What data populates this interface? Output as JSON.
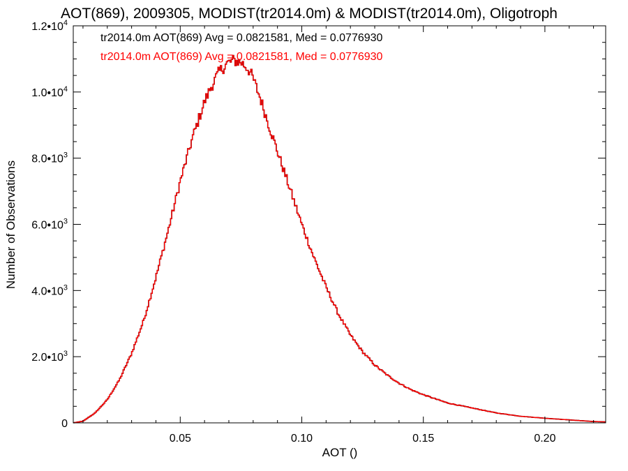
{
  "chart_data": {
    "type": "line",
    "title": "AOT(869), 2009305, MODIST(tr2014.0m) & MODIST(tr2014.0m), Oligotroph",
    "xlabel": "AOT ()",
    "ylabel": "Number of Observations",
    "xlim": [
      0.006,
      0.225
    ],
    "ylim": [
      0,
      12000
    ],
    "x_ticks": [
      {
        "value": 0.05,
        "label": "0.05"
      },
      {
        "value": 0.1,
        "label": "0.10"
      },
      {
        "value": 0.15,
        "label": "0.15"
      },
      {
        "value": 0.2,
        "label": "0.20"
      }
    ],
    "y_ticks": [
      {
        "value": 0,
        "mantissa": "0",
        "exp": ""
      },
      {
        "value": 2000,
        "mantissa": "2.0•10",
        "exp": "3"
      },
      {
        "value": 4000,
        "mantissa": "4.0•10",
        "exp": "3"
      },
      {
        "value": 6000,
        "mantissa": "6.0•10",
        "exp": "3"
      },
      {
        "value": 8000,
        "mantissa": "8.0•10",
        "exp": "3"
      },
      {
        "value": 10000,
        "mantissa": "1.0•10",
        "exp": "4"
      },
      {
        "value": 12000,
        "mantissa": "1.2•10",
        "exp": "4"
      }
    ],
    "legend": {
      "placement": "top-left",
      "entries": [
        {
          "text": "tr2014.0m AOT(869) Avg = 0.0821581, Med = 0.0776930",
          "color": "#000000"
        },
        {
          "text": "tr2014.0m AOT(869) Avg = 0.0821581, Med = 0.0776930",
          "color": "#ff0000"
        }
      ]
    },
    "series": [
      {
        "color": "#000000",
        "x": [
          0.006,
          0.01,
          0.015,
          0.02,
          0.025,
          0.03,
          0.035,
          0.04,
          0.045,
          0.05,
          0.055,
          0.06,
          0.063,
          0.066,
          0.069,
          0.072,
          0.075,
          0.078,
          0.08,
          0.083,
          0.086,
          0.09,
          0.095,
          0.1,
          0.105,
          0.11,
          0.115,
          0.12,
          0.125,
          0.13,
          0.135,
          0.14,
          0.145,
          0.15,
          0.16,
          0.17,
          0.18,
          0.19,
          0.2,
          0.21,
          0.22,
          0.225
        ],
        "y": [
          0,
          50,
          300,
          700,
          1300,
          2100,
          3100,
          4400,
          5800,
          7300,
          8600,
          9700,
          10200,
          10600,
          10850,
          10950,
          10900,
          10700,
          10400,
          9800,
          9100,
          8200,
          7100,
          6000,
          5000,
          4100,
          3300,
          2650,
          2150,
          1750,
          1450,
          1200,
          1000,
          850,
          600,
          450,
          300,
          200,
          140,
          90,
          40,
          30
        ]
      },
      {
        "color": "#ff0000",
        "x": [
          0.006,
          0.01,
          0.015,
          0.02,
          0.025,
          0.03,
          0.035,
          0.04,
          0.045,
          0.05,
          0.055,
          0.06,
          0.063,
          0.066,
          0.069,
          0.072,
          0.075,
          0.078,
          0.08,
          0.083,
          0.086,
          0.09,
          0.095,
          0.1,
          0.105,
          0.11,
          0.115,
          0.12,
          0.125,
          0.13,
          0.135,
          0.14,
          0.145,
          0.15,
          0.16,
          0.17,
          0.18,
          0.19,
          0.2,
          0.21,
          0.22,
          0.225
        ],
        "y": [
          0,
          50,
          300,
          700,
          1300,
          2100,
          3100,
          4400,
          5800,
          7300,
          8600,
          9700,
          10200,
          10600,
          10850,
          10950,
          10900,
          10700,
          10400,
          9800,
          9100,
          8200,
          7100,
          6000,
          5000,
          4100,
          3300,
          2650,
          2150,
          1750,
          1450,
          1200,
          1000,
          850,
          600,
          450,
          300,
          200,
          140,
          90,
          40,
          30
        ]
      }
    ]
  }
}
